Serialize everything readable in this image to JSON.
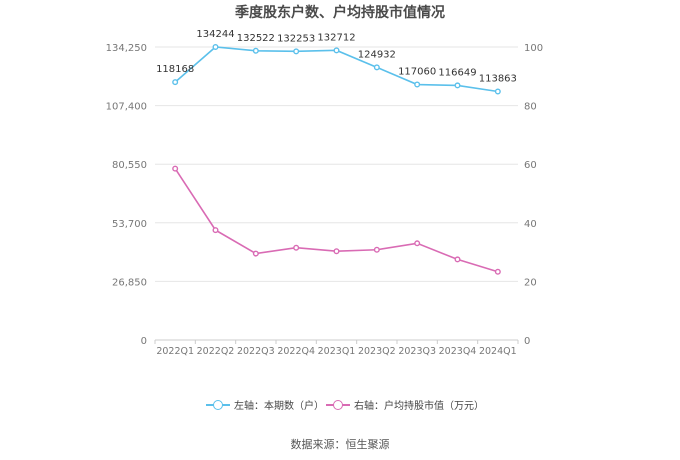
{
  "title": "季度股东户数、户均持股市值情况",
  "source": "数据来源：恒生聚源",
  "legend": {
    "left": "左轴：本期数（户）",
    "right": "右轴：户均持股市值（万元）"
  },
  "colors": {
    "left_series": "#5bc0eb",
    "right_series": "#d96bb4",
    "grid": "#e6e6e6",
    "axis_text": "#777777"
  },
  "chart_data": {
    "type": "line",
    "title": "季度股东户数、户均持股市值情况",
    "categories": [
      "2022Q1",
      "2022Q2",
      "2022Q3",
      "2022Q4",
      "2023Q1",
      "2023Q2",
      "2023Q3",
      "2023Q4",
      "2024Q1"
    ],
    "series": [
      {
        "name": "左轴：本期数（户）",
        "axis": "left",
        "values": [
          118168,
          134244,
          132522,
          132253,
          132712,
          124932,
          117060,
          116649,
          113863
        ],
        "data_labels": [
          "118168",
          "134244",
          "132522",
          "132253",
          "132712",
          "124932",
          "117060",
          "116649",
          "113863"
        ]
      },
      {
        "name": "右轴：户均持股市值（万元）",
        "axis": "right",
        "values": [
          58.5,
          37.5,
          29.5,
          31.5,
          30.3,
          30.8,
          33.0,
          27.5,
          23.3
        ]
      }
    ],
    "left_axis": {
      "ylim": [
        0,
        134250
      ],
      "ticks": [
        0,
        26850,
        53700,
        80550,
        107400,
        134250
      ],
      "tick_labels": [
        "0",
        "26,850",
        "53,700",
        "80,550",
        "107,400",
        "134,250"
      ]
    },
    "right_axis": {
      "ylim": [
        0,
        100
      ],
      "ticks": [
        0,
        20,
        40,
        60,
        80,
        100
      ],
      "tick_labels": [
        "0",
        "20",
        "40",
        "60",
        "80",
        "100"
      ]
    },
    "grid": true,
    "legend_position": "bottom"
  }
}
